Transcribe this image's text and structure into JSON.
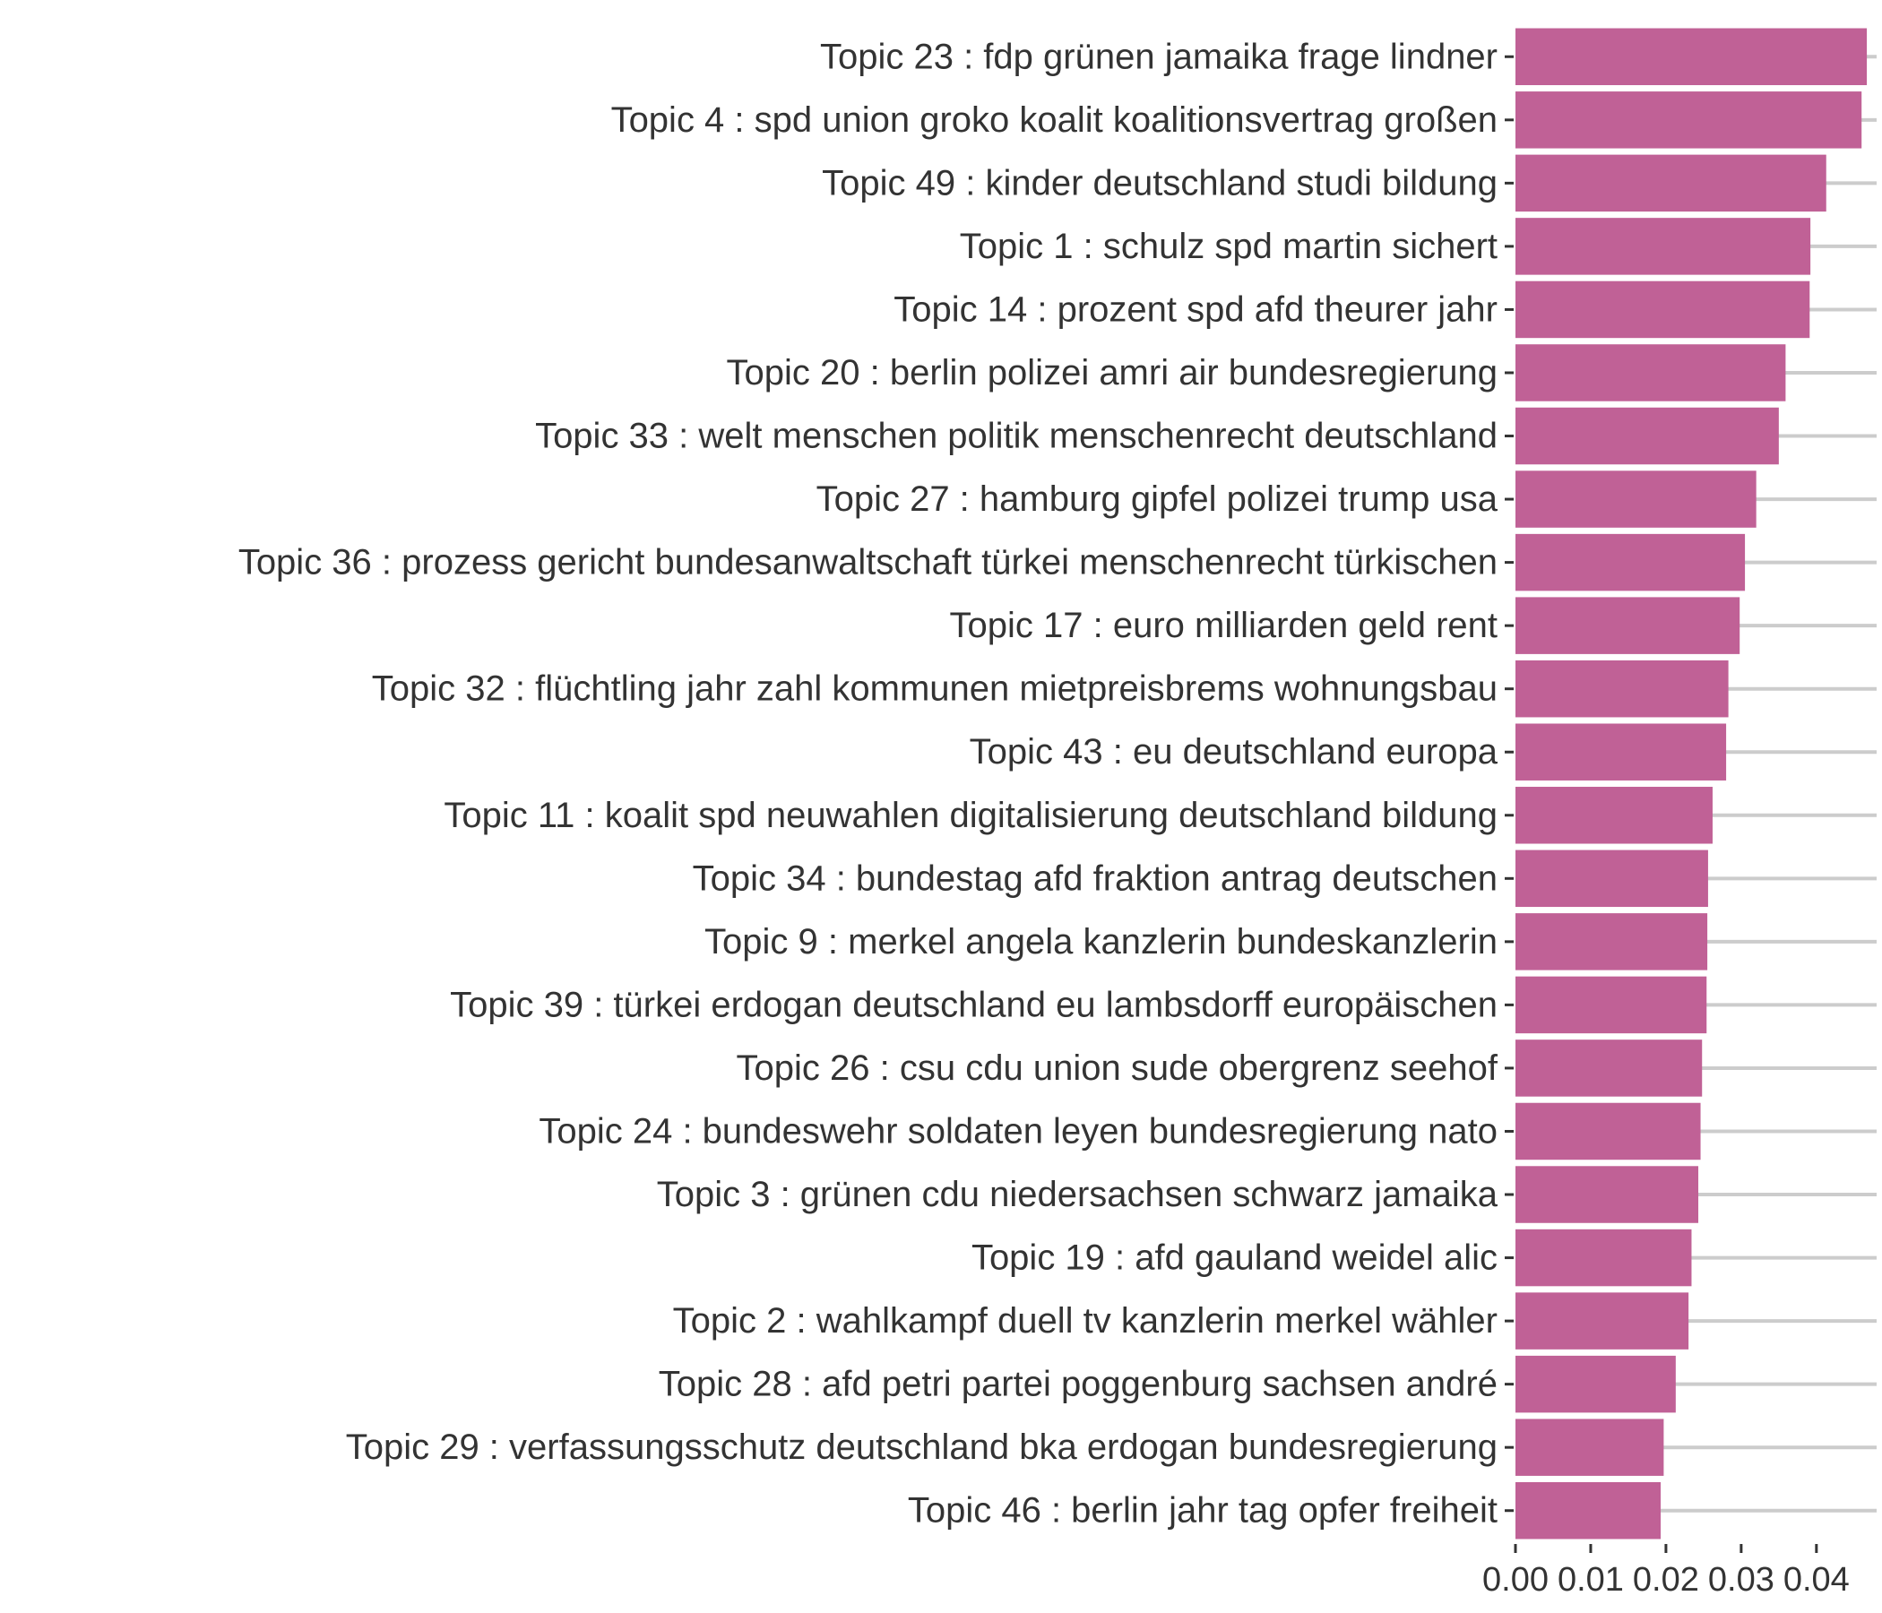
{
  "chart_data": {
    "type": "bar",
    "orientation": "horizontal",
    "bar_color": "#c06196",
    "grid": "horizontal",
    "xlim": [
      0,
      0.048
    ],
    "x_ticks": [
      "0.00",
      "0.01",
      "0.02",
      "0.03",
      "0.04"
    ],
    "x_tick_values": [
      0,
      0.01,
      0.02,
      0.03,
      0.04
    ],
    "xlabel": "",
    "ylabel": "",
    "title": "",
    "categories": [
      "Topic 23 : fdp grünen jamaika frage lindner",
      "Topic 4 : spd union groko koalit koalitionsvertrag großen",
      "Topic 49 : kinder deutschland studi bildung",
      "Topic 1 : schulz spd martin sichert",
      "Topic 14 : prozent spd afd theurer jahr",
      "Topic 20 : berlin polizei amri air bundesregierung",
      "Topic 33 : welt menschen politik menschenrecht deutschland",
      "Topic 27 : hamburg gipfel polizei trump usa",
      "Topic 36 : prozess gericht bundesanwaltschaft türkei menschenrecht türkischen",
      "Topic 17 : euro milliarden geld rent",
      "Topic 32 : flüchtling jahr zahl kommunen mietpreisbrems wohnungsbau",
      "Topic 43 : eu deutschland europa",
      "Topic 11 : koalit spd neuwahlen digitalisierung deutschland bildung",
      "Topic 34 : bundestag afd fraktion antrag deutschen",
      "Topic 9 : merkel angela kanzlerin bundeskanzlerin",
      "Topic 39 : türkei erdogan deutschland eu lambsdorff europäischen",
      "Topic 26 : csu cdu union sude obergrenz seehof",
      "Topic 24 : bundeswehr soldaten leyen bundesregierung nato",
      "Topic 3 : grünen cdu niedersachsen schwarz jamaika",
      "Topic 19 : afd gauland weidel alic",
      "Topic 2 : wahlkampf duell tv kanzlerin merkel wähler",
      "Topic 28 : afd petri partei poggenburg sachsen andré",
      "Topic 29 : verfassungsschutz deutschland bka erdogan bundesregierung",
      "Topic 46 : berlin jahr tag opfer freiheit"
    ],
    "values": [
      0.0467,
      0.046,
      0.0413,
      0.0392,
      0.0391,
      0.0359,
      0.035,
      0.032,
      0.0305,
      0.0298,
      0.0283,
      0.028,
      0.0262,
      0.0256,
      0.0255,
      0.0254,
      0.0248,
      0.0246,
      0.0243,
      0.0234,
      0.023,
      0.0213,
      0.0197,
      0.0193
    ]
  }
}
